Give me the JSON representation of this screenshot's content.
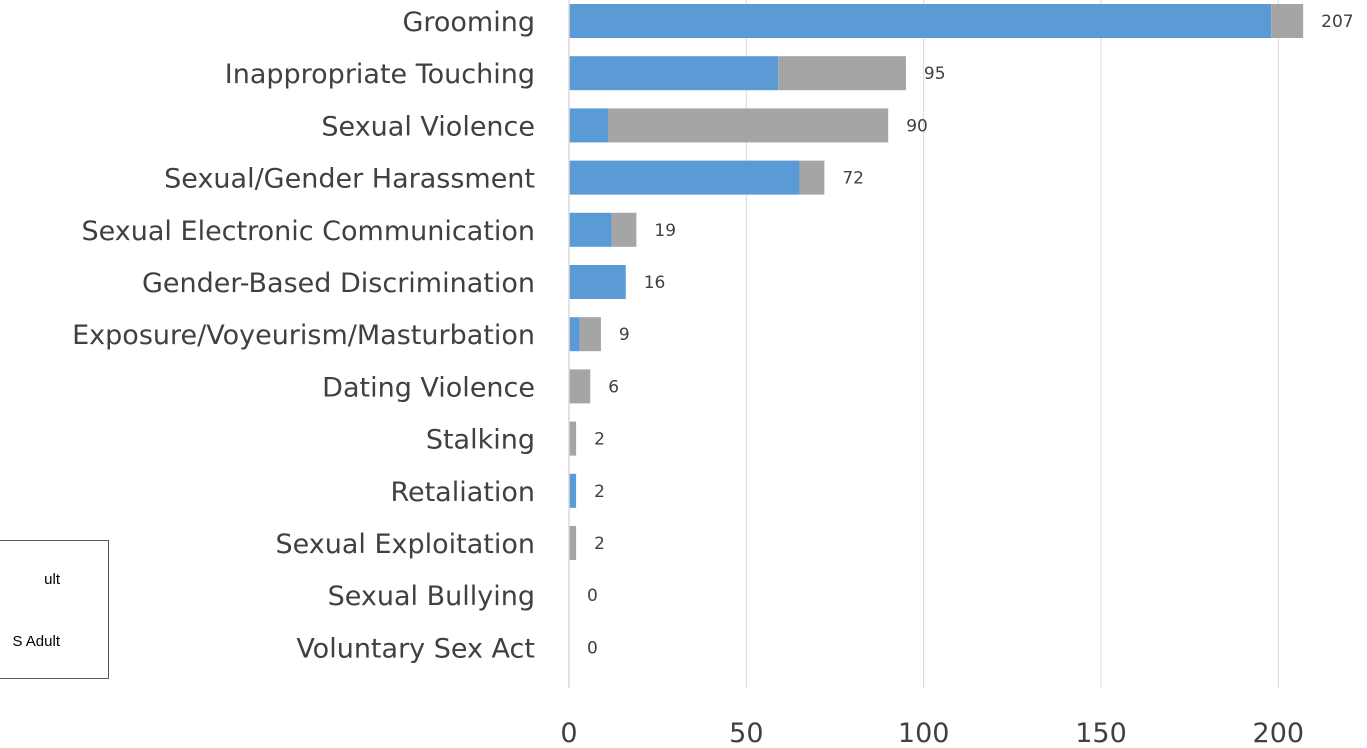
{
  "chart_data": {
    "type": "bar",
    "orientation": "horizontal",
    "stacked": true,
    "categories": [
      "Grooming",
      "Inappropriate Touching",
      "Sexual Violence",
      "Sexual/Gender Harassment",
      "Sexual Electronic Communication",
      "Gender-Based Discrimination",
      "Exposure/Voyeurism/Masturbation",
      "Dating Violence",
      "Stalking",
      "Retaliation",
      "Sexual Exploitation",
      "Sexual Bullying",
      "Voluntary Sex Act"
    ],
    "series": [
      {
        "values": [
          198,
          59,
          11,
          65,
          12,
          16,
          3,
          0,
          0,
          2,
          0,
          0,
          0
        ],
        "color": "#5b9bd5"
      },
      {
        "values": [
          9,
          36,
          79,
          7,
          7,
          0,
          6,
          6,
          2,
          0,
          2,
          0,
          0
        ],
        "color": "#a5a5a5"
      }
    ],
    "totals": [
      "207",
      "95",
      "90",
      "72",
      "19",
      "16",
      "9",
      "6",
      "2",
      "2",
      "2",
      "0",
      "0"
    ],
    "xlim": [
      0,
      225
    ],
    "x_ticks": [
      "0",
      "50",
      "100",
      "150",
      "200"
    ],
    "grid": "vertical",
    "legend": {
      "placement": "bottom-left",
      "entries": [
        "ult",
        "S Adult"
      ]
    }
  }
}
